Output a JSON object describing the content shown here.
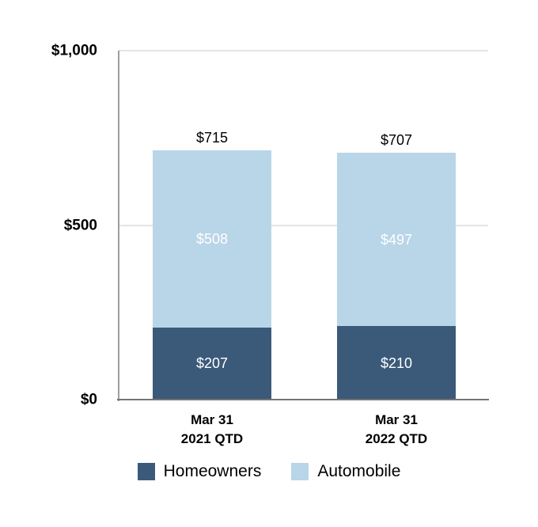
{
  "chart_data": {
    "type": "bar",
    "stacked": true,
    "title": "",
    "categories": [
      [
        "Mar 31",
        "2021 QTD"
      ],
      [
        "Mar 31",
        "2022 QTD"
      ]
    ],
    "series": [
      {
        "name": "Homeowners",
        "color": "#3b5a7a",
        "values": [
          207,
          210
        ],
        "value_labels": [
          "$207",
          "$210"
        ]
      },
      {
        "name": "Automobile",
        "color": "#b9d5e8",
        "values": [
          508,
          497
        ],
        "value_labels": [
          "$508",
          "$497"
        ]
      }
    ],
    "totals": [
      715,
      707
    ],
    "total_labels": [
      "$715",
      "$707"
    ],
    "y_axis": {
      "lim": [
        0,
        1000
      ],
      "ticks": [
        {
          "value": 0,
          "label": "$0"
        },
        {
          "value": 500,
          "label": "$500"
        },
        {
          "value": 1000,
          "label": "$1,000"
        }
      ]
    },
    "grid": "horizontal",
    "legend_position": "bottom",
    "inside_label_color": "#ffffff",
    "background_color": "#ffffff"
  }
}
